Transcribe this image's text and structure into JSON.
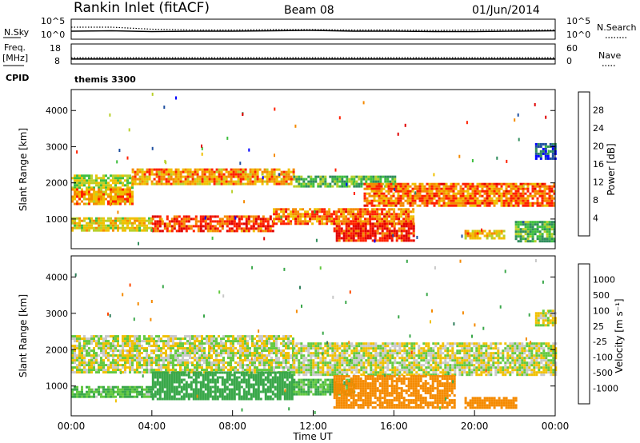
{
  "header": {
    "station": "Rankin Inlet (fitACF)",
    "beam": "Beam 08",
    "date": "01/Jun/2014"
  },
  "colors": {
    "power_scale": [
      "#0000ff",
      "#1e4fa0",
      "#2f8d5c",
      "#3fbf3f",
      "#b8d02a",
      "#f0c000",
      "#f58a00",
      "#ff2000",
      "#e00000"
    ],
    "velocity_scale": [
      "#2440a8",
      "#2e7d5a",
      "#3aa84a",
      "#63c940",
      "#c8c8c8",
      "#f0c000",
      "#f58a00",
      "#ff4a00",
      "#ff0000"
    ]
  },
  "chart_data": [
    {
      "type": "line",
      "panel": "noise",
      "y_left_label": "N.Sky",
      "y_left_ticks": [
        "10^5",
        "10^0"
      ],
      "y_right_label": "N.Search",
      "y_right_ticks": [
        "10^5",
        "10^0"
      ],
      "series": [
        {
          "name": "N.Sky",
          "style": "solid",
          "x": [
            0,
            2,
            4,
            6,
            8,
            10,
            12,
            14,
            16,
            18,
            20,
            22,
            24
          ],
          "y": [
            2.0,
            2.1,
            1.9,
            2.0,
            2.0,
            2.1,
            2.2,
            2.0,
            2.0,
            1.9,
            1.9,
            2.0,
            2.1
          ]
        },
        {
          "name": "N.Search",
          "style": "dotted",
          "x": [
            0,
            2,
            4,
            6,
            8,
            10,
            12,
            14,
            16,
            18,
            20,
            22,
            24
          ],
          "y": [
            3.0,
            3.0,
            2.5,
            2.3,
            2.3,
            2.4,
            2.4,
            2.3,
            2.3,
            2.2,
            2.3,
            2.3,
            2.3
          ]
        }
      ],
      "xlim": [
        0,
        24
      ],
      "ylim": [
        0,
        5
      ]
    },
    {
      "type": "line",
      "panel": "frequency",
      "y_left_label": "Freq.",
      "y_left_unit": "[MHz]",
      "y_left_ticks": [
        "18",
        "8"
      ],
      "y_right_label": "Nave",
      "y_right_ticks": [
        "60",
        "0"
      ],
      "cpid_label": "CPID",
      "cpid_text": "themis 3300",
      "series": [
        {
          "name": "Freq.",
          "style": "solid",
          "x": [
            0,
            24
          ],
          "y": [
            10.5,
            10.5
          ]
        },
        {
          "name": "Nave",
          "style": "dotted",
          "x": [
            0,
            24
          ],
          "y": [
            19,
            19
          ]
        }
      ],
      "xlim": [
        0,
        24
      ],
      "ylim": [
        8,
        18
      ]
    },
    {
      "type": "heatmap",
      "panel": "power",
      "ylabel": "Slant Range [km]",
      "yticks": [
        1000,
        2000,
        3000,
        4000
      ],
      "ylim": [
        180,
        4580
      ],
      "xlim": [
        0,
        24
      ],
      "colorbar_label": "Power [dB]",
      "colorbar_ticks": [
        "4",
        "8",
        "12",
        "16",
        "20",
        "24",
        "28"
      ],
      "bands": [
        {
          "t0": 0,
          "t1": 3,
          "r0": 1850,
          "r1": 2230,
          "v": 16
        },
        {
          "t0": 0,
          "t1": 3,
          "r0": 1450,
          "r1": 1850,
          "v": 22
        },
        {
          "t0": 3,
          "t1": 11,
          "r0": 1950,
          "r1": 2400,
          "v": 22
        },
        {
          "t0": 11,
          "t1": 16,
          "r0": 1900,
          "r1": 2200,
          "v": 12
        },
        {
          "t0": 14.5,
          "t1": 24,
          "r0": 1350,
          "r1": 2000,
          "v": 24
        },
        {
          "t0": 0,
          "t1": 4,
          "r0": 700,
          "r1": 1050,
          "v": 18
        },
        {
          "t0": 4,
          "t1": 10,
          "r0": 650,
          "r1": 1100,
          "v": 26
        },
        {
          "t0": 10,
          "t1": 17,
          "r0": 900,
          "r1": 1300,
          "v": 24
        },
        {
          "t0": 13,
          "t1": 17,
          "r0": 420,
          "r1": 900,
          "v": 28
        },
        {
          "t0": 19.5,
          "t1": 21.5,
          "r0": 480,
          "r1": 700,
          "v": 20
        },
        {
          "t0": 22,
          "t1": 24,
          "r0": 400,
          "r1": 950,
          "v": 12
        },
        {
          "t0": 23,
          "t1": 24,
          "r0": 2700,
          "r1": 3100,
          "v": 6
        }
      ]
    },
    {
      "type": "heatmap",
      "panel": "velocity",
      "ylabel": "Slant Range [km]",
      "yticks": [
        1000,
        2000,
        3000,
        4000
      ],
      "ylim": [
        180,
        4580
      ],
      "xlim": [
        0,
        24
      ],
      "xlabel": "Time UT",
      "xticklabels": [
        "00:00",
        "04:00",
        "08:00",
        "12:00",
        "16:00",
        "20:00",
        "00:00"
      ],
      "colorbar_label": "Velocity [m s⁻¹]",
      "colorbar_ticks": [
        "1000",
        "500",
        "100",
        "25",
        "-25",
        "-100",
        "-500",
        "-1000"
      ],
      "bands": [
        {
          "t0": 0,
          "t1": 11,
          "r0": 1400,
          "r1": 2400,
          "v": 0
        },
        {
          "t0": 11,
          "t1": 24,
          "r0": 1300,
          "r1": 2200,
          "v": 0
        },
        {
          "t0": 0,
          "t1": 4,
          "r0": 700,
          "r1": 1000,
          "v": 100
        },
        {
          "t0": 4,
          "t1": 11,
          "r0": 650,
          "r1": 1400,
          "v": 250
        },
        {
          "t0": 11,
          "t1": 14,
          "r0": 800,
          "r1": 1200,
          "v": 100
        },
        {
          "t0": 13,
          "t1": 19,
          "r0": 400,
          "r1": 1300,
          "v": -250
        },
        {
          "t0": 19.5,
          "t1": 22,
          "r0": 420,
          "r1": 700,
          "v": -250
        },
        {
          "t0": 23,
          "t1": 24,
          "r0": 2700,
          "r1": 3100,
          "v": 0
        }
      ]
    }
  ]
}
